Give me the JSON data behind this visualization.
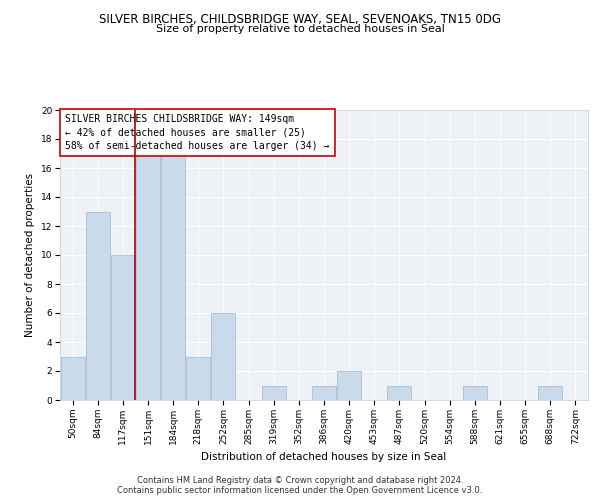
{
  "title": "SILVER BIRCHES, CHILDSBRIDGE WAY, SEAL, SEVENOAKS, TN15 0DG",
  "subtitle": "Size of property relative to detached houses in Seal",
  "xlabel": "Distribution of detached houses by size in Seal",
  "ylabel": "Number of detached properties",
  "categories": [
    "50sqm",
    "84sqm",
    "117sqm",
    "151sqm",
    "184sqm",
    "218sqm",
    "252sqm",
    "285sqm",
    "319sqm",
    "352sqm",
    "386sqm",
    "420sqm",
    "453sqm",
    "487sqm",
    "520sqm",
    "554sqm",
    "588sqm",
    "621sqm",
    "655sqm",
    "688sqm",
    "722sqm"
  ],
  "values": [
    3,
    13,
    10,
    17,
    17,
    3,
    6,
    0,
    1,
    0,
    1,
    2,
    0,
    1,
    0,
    0,
    1,
    0,
    0,
    1,
    0
  ],
  "bar_color": "#c9daea",
  "bar_edge_color": "#a0b8cc",
  "bar_linewidth": 0.5,
  "vline_x_index": 3,
  "vline_color": "#aa0000",
  "annotation_line1": "SILVER BIRCHES CHILDSBRIDGE WAY: 149sqm",
  "annotation_line2": "← 42% of detached houses are smaller (25)",
  "annotation_line3": "58% of semi-detached houses are larger (34) →",
  "annotation_box_color": "#ffffff",
  "annotation_box_edge_color": "#cc0000",
  "footer_line1": "Contains HM Land Registry data © Crown copyright and database right 2024.",
  "footer_line2": "Contains public sector information licensed under the Open Government Licence v3.0.",
  "ylim": [
    0,
    20
  ],
  "yticks": [
    0,
    2,
    4,
    6,
    8,
    10,
    12,
    14,
    16,
    18,
    20
  ],
  "background_color": "#eef2f7",
  "grid_color": "#ffffff",
  "title_fontsize": 8.5,
  "subtitle_fontsize": 8,
  "axis_label_fontsize": 7.5,
  "tick_fontsize": 6.5,
  "annotation_fontsize": 7,
  "footer_fontsize": 6
}
